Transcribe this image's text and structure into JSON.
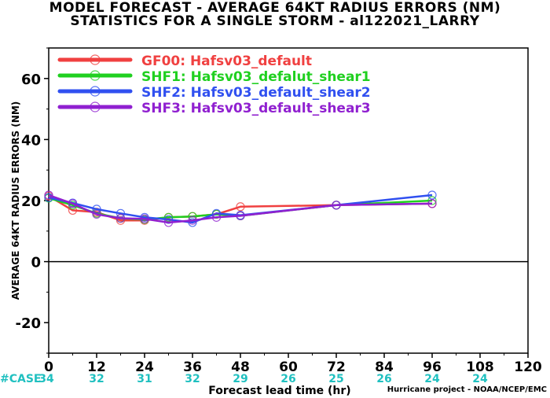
{
  "title_line1": "MODEL FORECAST - AVERAGE 64KT RADIUS ERRORS (NM)",
  "title_line2": "STATISTICS FOR A SINGLE STORM - al122021_LARRY",
  "credit": "Hurricane project - NOAA/NCEP/EMC",
  "case_label": "#CASE",
  "colors": {
    "zero_line": "#000000",
    "case_text": "#20c0c0",
    "GF00": "#f04040",
    "SHF1": "#20d020",
    "SHF2": "#3050f0",
    "SHF3": "#9020d0"
  },
  "chart_data": {
    "type": "line",
    "title": "MODEL FORECAST - AVERAGE 64KT RADIUS ERRORS (NM)",
    "subtitle": "STATISTICS FOR A SINGLE STORM - al122021_LARRY",
    "xlabel": "Forecast lead time (hr)",
    "ylabel": "AVERAGE 64KT RADIUS ERRORS (NM)",
    "xlim": [
      0,
      120
    ],
    "ylim": [
      -30,
      70
    ],
    "xticks": [
      0,
      12,
      24,
      36,
      48,
      60,
      72,
      84,
      96,
      108,
      120
    ],
    "yticks": [
      -20,
      0,
      20,
      40,
      60
    ],
    "grid": false,
    "legend_position": "top-left",
    "cases": {
      "x": [
        0,
        12,
        24,
        36,
        48,
        60,
        72,
        84,
        96,
        108
      ],
      "values": [
        "34",
        "32",
        "31",
        "32",
        "29",
        "26",
        "25",
        "26",
        "24",
        "24"
      ]
    },
    "series": [
      {
        "name": "GF00: Hafsv03_default",
        "key": "GF00",
        "x": [
          0,
          6,
          12,
          18,
          24,
          30,
          36,
          42,
          48,
          72,
          96
        ],
        "y": [
          21.5,
          16.8,
          16.2,
          13.5,
          13.5,
          14.5,
          14.8,
          15.5,
          18.0,
          18.5,
          19.0
        ]
      },
      {
        "name": "SHF1: Hafsv03_defalut_shear1",
        "key": "SHF1",
        "x": [
          0,
          6,
          12,
          18,
          24,
          30,
          36,
          42,
          48,
          72,
          96
        ],
        "y": [
          20.8,
          18.5,
          15.8,
          14.2,
          13.8,
          14.5,
          14.8,
          15.5,
          15.0,
          18.5,
          20.0
        ]
      },
      {
        "name": "SHF2: Hafsv03_default_shear2",
        "key": "SHF2",
        "x": [
          0,
          6,
          12,
          18,
          24,
          30,
          36,
          42,
          48,
          72,
          96
        ],
        "y": [
          21.0,
          19.2,
          17.2,
          15.8,
          14.5,
          13.8,
          12.8,
          15.8,
          15.2,
          18.5,
          21.8
        ]
      },
      {
        "name": "SHF3: Hafsv03_default_shear3",
        "key": "SHF3",
        "x": [
          0,
          6,
          12,
          18,
          24,
          30,
          36,
          42,
          48,
          72,
          96
        ],
        "y": [
          21.8,
          19.0,
          15.5,
          14.2,
          14.0,
          12.8,
          13.5,
          14.5,
          15.0,
          18.5,
          19.0
        ]
      }
    ]
  }
}
